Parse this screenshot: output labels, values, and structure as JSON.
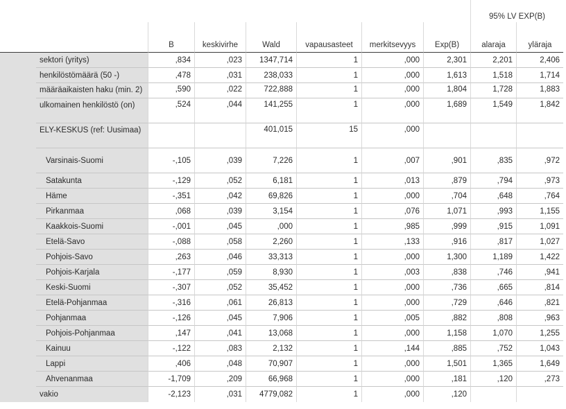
{
  "group_header": "95% LV EXP(B)",
  "headers": [
    "B",
    "keskivirhe",
    "Wald",
    "vapausasteet",
    "merkitsevyys",
    "Exp(B)",
    "alaraja",
    "yläraja"
  ],
  "rows": [
    {
      "label": "sektori (yritys)",
      "values": [
        ",834",
        ",023",
        "1347,714",
        "1",
        ",000",
        "2,301",
        "2,201",
        "2,406"
      ]
    },
    {
      "label": "henkilöstömäärä (50 -)",
      "values": [
        ",478",
        ",031",
        "238,033",
        "1",
        ",000",
        "1,613",
        "1,518",
        "1,714"
      ]
    },
    {
      "label": "määräaikaisten haku (min. 2)",
      "values": [
        ",590",
        ",022",
        "722,888",
        "1",
        ",000",
        "1,804",
        "1,728",
        "1,883"
      ]
    },
    {
      "label": "ulkomainen henkilöstö (on)",
      "values": [
        ",524",
        ",044",
        "141,255",
        "1",
        ",000",
        "1,689",
        "1,549",
        "1,842"
      ]
    },
    {
      "label": "ELY-KESKUS (ref: Uusimaa)",
      "values": [
        "",
        "",
        "401,015",
        "15",
        ",000",
        "",
        "",
        ""
      ]
    },
    {
      "label": "Varsinais-Suomi",
      "values": [
        "-,105",
        ",039",
        "7,226",
        "1",
        ",007",
        ",901",
        ",835",
        ",972"
      ]
    },
    {
      "label": "Satakunta",
      "values": [
        "-,129",
        ",052",
        "6,181",
        "1",
        ",013",
        ",879",
        ",794",
        ",973"
      ]
    },
    {
      "label": "Häme",
      "values": [
        "-,351",
        ",042",
        "69,826",
        "1",
        ",000",
        ",704",
        ",648",
        ",764"
      ]
    },
    {
      "label": "Pirkanmaa",
      "values": [
        ",068",
        ",039",
        "3,154",
        "1",
        ",076",
        "1,071",
        ",993",
        "1,155"
      ]
    },
    {
      "label": "Kaakkois-Suomi",
      "values": [
        "-,001",
        ",045",
        ",000",
        "1",
        ",985",
        ",999",
        ",915",
        "1,091"
      ]
    },
    {
      "label": "Etelä-Savo",
      "values": [
        "-,088",
        ",058",
        "2,260",
        "1",
        ",133",
        ",916",
        ",817",
        "1,027"
      ]
    },
    {
      "label": "Pohjois-Savo",
      "values": [
        ",263",
        ",046",
        "33,313",
        "1",
        ",000",
        "1,300",
        "1,189",
        "1,422"
      ]
    },
    {
      "label": "Pohjois-Karjala",
      "values": [
        "-,177",
        ",059",
        "8,930",
        "1",
        ",003",
        ",838",
        ",746",
        ",941"
      ]
    },
    {
      "label": "Keski-Suomi",
      "values": [
        "-,307",
        ",052",
        "35,452",
        "1",
        ",000",
        ",736",
        ",665",
        ",814"
      ]
    },
    {
      "label": "Etelä-Pohjanmaa",
      "values": [
        "-,316",
        ",061",
        "26,813",
        "1",
        ",000",
        ",729",
        ",646",
        ",821"
      ]
    },
    {
      "label": "Pohjanmaa",
      "values": [
        "-,126",
        ",045",
        "7,906",
        "1",
        ",005",
        ",882",
        ",808",
        ",963"
      ]
    },
    {
      "label": "Pohjois-Pohjanmaa",
      "values": [
        ",147",
        ",041",
        "13,068",
        "1",
        ",000",
        "1,158",
        "1,070",
        "1,255"
      ]
    },
    {
      "label": "Kainuu",
      "values": [
        "-,122",
        ",083",
        "2,132",
        "1",
        ",144",
        ",885",
        ",752",
        "1,043"
      ]
    },
    {
      "label": "Lappi",
      "values": [
        ",406",
        ",048",
        "70,907",
        "1",
        ",000",
        "1,501",
        "1,365",
        "1,649"
      ]
    },
    {
      "label": "Ahvenanmaa",
      "values": [
        "-1,709",
        ",209",
        "66,968",
        "1",
        ",000",
        ",181",
        ",120",
        ",273"
      ]
    },
    {
      "label": "vakio",
      "values": [
        "-2,123",
        ",031",
        "4779,082",
        "1",
        ",000",
        ",120",
        "",
        ""
      ]
    }
  ]
}
